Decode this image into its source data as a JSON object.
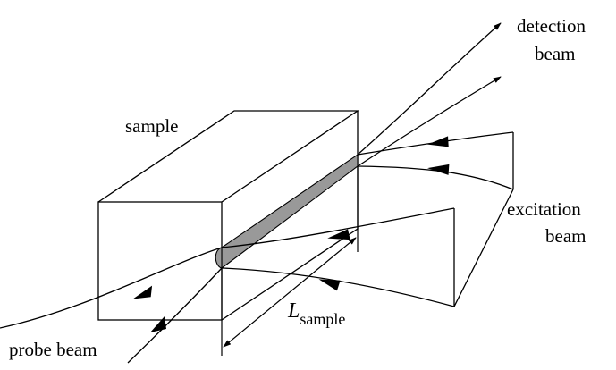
{
  "labels": {
    "sample": "sample",
    "detection_line1": "detection",
    "detection_line2": "beam",
    "excitation_line1": "excitation",
    "excitation_line2": "beam",
    "probe": "probe beam",
    "length_symbol": "L",
    "length_subscript": "sample"
  },
  "colors": {
    "stroke": "#000000",
    "interaction_fill": "#999999",
    "background": "#ffffff"
  }
}
